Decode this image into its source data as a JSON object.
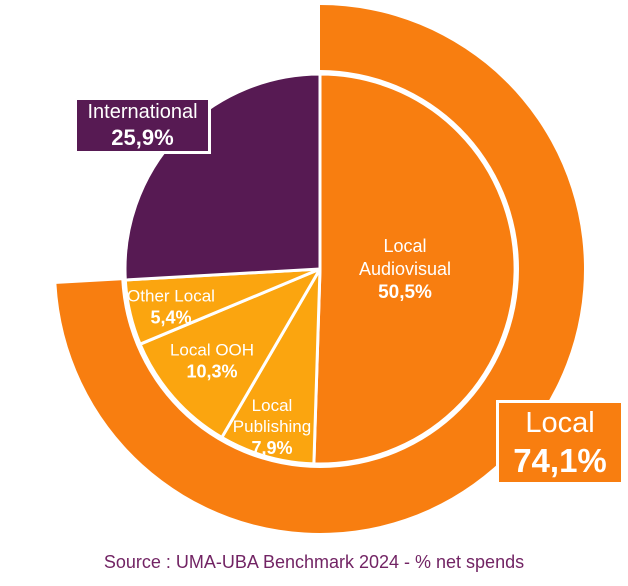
{
  "chart_data": {
    "type": "pie",
    "title": "",
    "legend": "none",
    "description_layout": "nested pie: inner pie of 5 slices starting at 12 o'clock clockwise; outer ring arc spans the Local total; white separators",
    "colors": {
      "orange": "#F87E10",
      "amber": "#FBA50F",
      "purple": "#571A53",
      "source_text": "#722464",
      "separator": "#ffffff"
    },
    "slices": [
      {
        "id": "local-audiovisual",
        "label": "Local Audiovisual",
        "label_lines": [
          "Local",
          "Audiovisual"
        ],
        "value": 50.5,
        "pct_display": "50,5%",
        "color": "#F87E10"
      },
      {
        "id": "local-publishing",
        "label": "Local Publishing",
        "label_lines": [
          "Local",
          "Publishing"
        ],
        "value": 7.9,
        "pct_display": "7,9%",
        "color": "#FBA50F"
      },
      {
        "id": "local-ooh",
        "label": "Local OOH",
        "label_lines": [
          "Local OOH"
        ],
        "value": 10.3,
        "pct_display": "10,3%",
        "color": "#FBA50F"
      },
      {
        "id": "other-local",
        "label": "Other Local",
        "label_lines": [
          "Other Local"
        ],
        "value": 5.4,
        "pct_display": "5,4%",
        "color": "#FBA50F"
      },
      {
        "id": "international",
        "label": "International",
        "label_lines": [
          "International"
        ],
        "value": 25.9,
        "pct_display": "25,9%",
        "color": "#571A53"
      }
    ],
    "ring": {
      "label": "Local",
      "value": 74.1,
      "pct_display": "74,1%",
      "color": "#F87E10"
    },
    "source": "Source : UMA-UBA Benchmark 2024 - % net spends"
  }
}
